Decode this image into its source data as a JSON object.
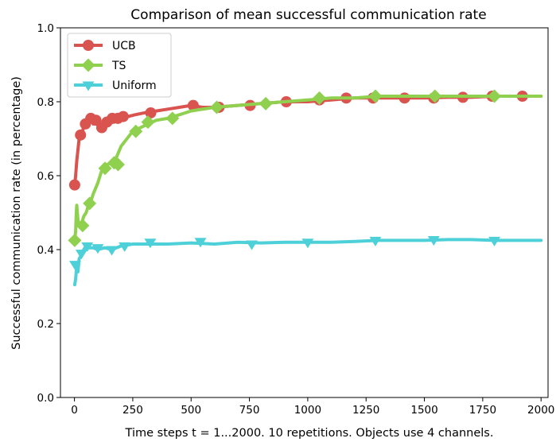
{
  "chart_data": {
    "type": "line",
    "title": "Comparison of mean successful communication rate",
    "xlabel": "Time steps t = 1...2000. 10 repetitions. Objects use 4 channels.",
    "ylabel": "Successful communication rate (in percentage)",
    "xlim": [
      -60,
      2030
    ],
    "ylim": [
      0.0,
      1.0
    ],
    "x_ticks": [
      0,
      250,
      500,
      750,
      1000,
      1250,
      1500,
      1750,
      2000
    ],
    "x_tick_labels": [
      "0",
      "250",
      "500",
      "750",
      "1000",
      "1250",
      "1500",
      "1750",
      "2000"
    ],
    "y_ticks": [
      0.0,
      0.2,
      0.4,
      0.6,
      0.8,
      1.0
    ],
    "y_tick_labels": [
      "0.0",
      "0.2",
      "0.4",
      "0.6",
      "0.8",
      "1.0"
    ],
    "grid": false,
    "legend_position": "top-left",
    "series": [
      {
        "name": "UCB",
        "color": "#d9534f",
        "marker": "circle",
        "x": [
          1,
          5,
          10,
          15,
          20,
          25,
          30,
          35,
          40,
          45,
          50,
          55,
          60,
          65,
          70,
          80,
          90,
          100,
          110,
          120,
          130,
          140,
          150,
          160,
          170,
          180,
          200,
          230,
          260,
          300,
          350,
          400,
          450,
          500,
          550,
          600,
          700,
          800,
          900,
          1000,
          1100,
          1200,
          1300,
          1400,
          1500,
          1600,
          1700,
          1800,
          1900,
          2000
        ],
        "y": [
          0.575,
          0.6,
          0.64,
          0.67,
          0.7,
          0.71,
          0.715,
          0.72,
          0.735,
          0.74,
          0.75,
          0.755,
          0.75,
          0.745,
          0.755,
          0.74,
          0.75,
          0.745,
          0.735,
          0.725,
          0.73,
          0.745,
          0.75,
          0.755,
          0.745,
          0.755,
          0.76,
          0.76,
          0.765,
          0.77,
          0.775,
          0.78,
          0.785,
          0.79,
          0.785,
          0.785,
          0.79,
          0.795,
          0.8,
          0.8,
          0.805,
          0.81,
          0.81,
          0.81,
          0.81,
          0.812,
          0.812,
          0.815,
          0.815,
          0.815
        ],
        "marker_x": [
          1,
          26,
          47,
          70,
          92,
          117,
          139,
          162,
          186,
          209,
          327,
          509,
          620,
          753,
          908,
          1050,
          1165,
          1280,
          1415,
          1540,
          1665,
          1790,
          1920
        ],
        "marker_y": [
          0.575,
          0.71,
          0.74,
          0.755,
          0.75,
          0.73,
          0.745,
          0.755,
          0.755,
          0.76,
          0.77,
          0.79,
          0.785,
          0.79,
          0.8,
          0.805,
          0.81,
          0.81,
          0.81,
          0.81,
          0.812,
          0.815,
          0.815
        ]
      },
      {
        "name": "TS",
        "color": "#8fd14f",
        "marker": "diamond",
        "x": [
          1,
          5,
          8,
          10,
          15,
          20,
          25,
          30,
          40,
          50,
          60,
          70,
          80,
          100,
          120,
          140,
          160,
          180,
          200,
          250,
          300,
          350,
          400,
          450,
          500,
          600,
          700,
          800,
          900,
          1000,
          1100,
          1200,
          1300,
          1400,
          1500,
          1600,
          1700,
          1800,
          1900,
          2000
        ],
        "y": [
          0.425,
          0.45,
          0.5,
          0.52,
          0.48,
          0.47,
          0.46,
          0.47,
          0.49,
          0.5,
          0.52,
          0.53,
          0.55,
          0.58,
          0.62,
          0.63,
          0.635,
          0.65,
          0.68,
          0.72,
          0.735,
          0.75,
          0.755,
          0.765,
          0.775,
          0.785,
          0.79,
          0.795,
          0.8,
          0.805,
          0.81,
          0.81,
          0.815,
          0.815,
          0.815,
          0.815,
          0.815,
          0.815,
          0.815,
          0.815
        ],
        "marker_x": [
          1,
          35,
          65,
          131,
          170,
          187,
          263,
          315,
          420,
          610,
          820,
          1050,
          1290,
          1545,
          1800
        ],
        "marker_y": [
          0.425,
          0.465,
          0.525,
          0.62,
          0.635,
          0.63,
          0.72,
          0.745,
          0.755,
          0.785,
          0.795,
          0.81,
          0.815,
          0.815,
          0.815
        ]
      },
      {
        "name": "Uniform",
        "color": "#4dd0d8",
        "marker": "triangle-down",
        "x": [
          1,
          5,
          10,
          15,
          20,
          25,
          30,
          40,
          50,
          60,
          80,
          100,
          130,
          160,
          200,
          250,
          300,
          400,
          500,
          600,
          700,
          800,
          900,
          1000,
          1100,
          1200,
          1300,
          1400,
          1500,
          1600,
          1700,
          1800,
          1900,
          2000
        ],
        "y": [
          0.305,
          0.32,
          0.36,
          0.34,
          0.375,
          0.38,
          0.39,
          0.4,
          0.41,
          0.405,
          0.405,
          0.4,
          0.405,
          0.4,
          0.41,
          0.415,
          0.415,
          0.415,
          0.418,
          0.415,
          0.42,
          0.418,
          0.42,
          0.42,
          0.42,
          0.422,
          0.425,
          0.425,
          0.425,
          0.427,
          0.427,
          0.425,
          0.425,
          0.425
        ],
        "marker_x": [
          3,
          30,
          55,
          100,
          160,
          215,
          325,
          540,
          760,
          1000,
          1290,
          1540,
          1800
        ],
        "marker_y": [
          0.36,
          0.39,
          0.41,
          0.405,
          0.4,
          0.41,
          0.42,
          0.422,
          0.415,
          0.42,
          0.425,
          0.427,
          0.425
        ]
      }
    ]
  }
}
